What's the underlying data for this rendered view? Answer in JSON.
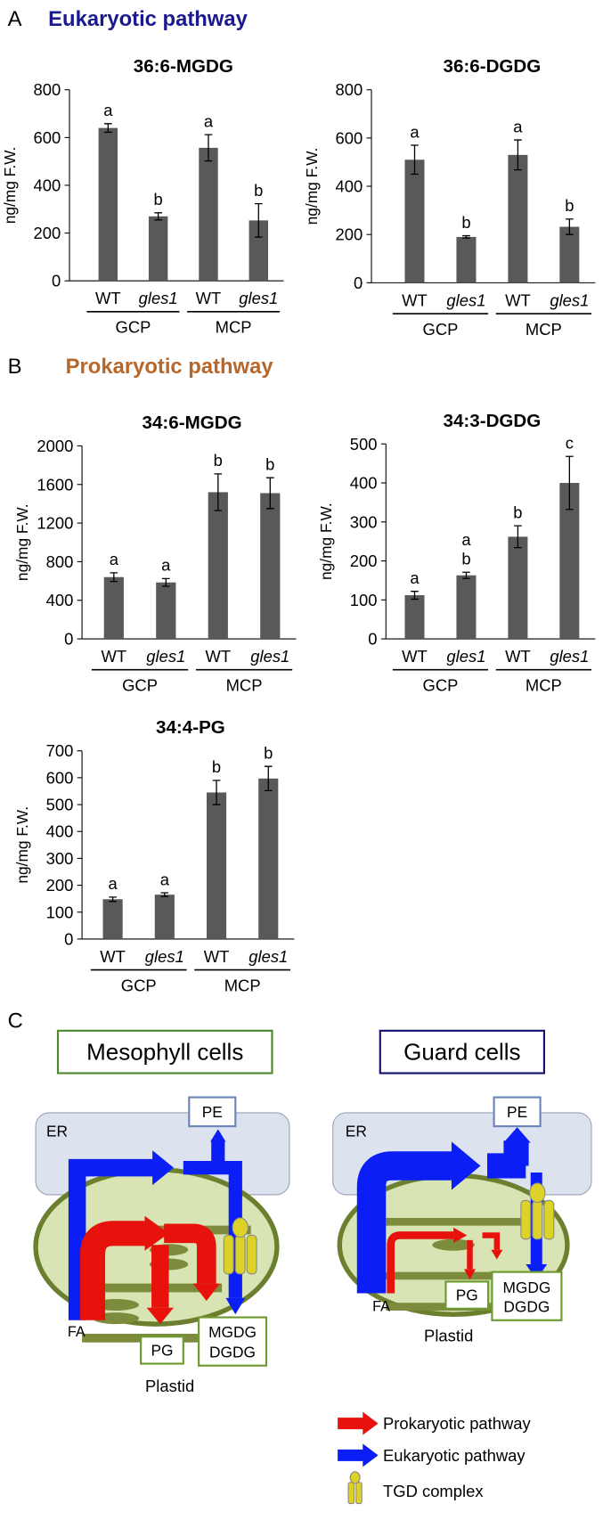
{
  "panels": [
    {
      "label": "A",
      "title": "Eukaryotic pathway"
    },
    {
      "label": "B",
      "title": "Prokaryotic pathway"
    },
    {
      "label": "C"
    }
  ],
  "chart_data": [
    {
      "type": "bar",
      "title": "36:6-MGDG",
      "y_label": "ng/mg F.W.",
      "categories": [
        "WT",
        "gles1",
        "WT",
        "gles1"
      ],
      "groups": [
        "GCP",
        "MCP"
      ],
      "values": [
        640,
        270,
        557,
        253
      ],
      "errors": [
        18,
        15,
        55,
        70
      ],
      "letters": [
        [
          "a"
        ],
        [
          "b"
        ],
        [
          "a"
        ],
        [
          "b"
        ]
      ],
      "color": "#595959",
      "ylim": [
        0,
        800
      ],
      "yticks": [
        0,
        200,
        400,
        600,
        800
      ]
    },
    {
      "type": "bar",
      "title": "36:6-DGDG",
      "y_label": "ng/mg F.W.",
      "categories": [
        "WT",
        "gles1",
        "WT",
        "gles1"
      ],
      "groups": [
        "GCP",
        "MCP"
      ],
      "values": [
        510,
        190,
        530,
        232
      ],
      "errors": [
        60,
        5,
        62,
        32
      ],
      "letters": [
        [
          "a"
        ],
        [
          "b"
        ],
        [
          "a"
        ],
        [
          "b"
        ]
      ],
      "color": "#595959",
      "ylim": [
        0,
        800
      ],
      "yticks": [
        0,
        200,
        400,
        600,
        800
      ]
    },
    {
      "type": "bar",
      "title": "34:6-MGDG",
      "y_label": "ng/mg F.W.",
      "categories": [
        "WT",
        "gles1",
        "WT",
        "gles1"
      ],
      "groups": [
        "GCP",
        "MCP"
      ],
      "values": [
        640,
        585,
        1520,
        1510
      ],
      "errors": [
        45,
        40,
        190,
        160
      ],
      "letters": [
        [
          "a"
        ],
        [
          "a"
        ],
        [
          "b"
        ],
        [
          "b"
        ]
      ],
      "color": "#595959",
      "ylim": [
        0,
        2000
      ],
      "yticks": [
        0,
        400,
        800,
        1200,
        1600,
        2000
      ]
    },
    {
      "type": "bar",
      "title": "34:3-DGDG",
      "y_label": "ng/mg F.W.",
      "categories": [
        "WT",
        "gles1",
        "WT",
        "gles1"
      ],
      "groups": [
        "GCP",
        "MCP"
      ],
      "values": [
        112,
        163,
        262,
        400
      ],
      "errors": [
        10,
        8,
        28,
        68
      ],
      "letters": [
        [
          "a"
        ],
        [
          "a",
          "b"
        ],
        [
          "b"
        ],
        [
          "c"
        ]
      ],
      "color": "#595959",
      "ylim": [
        0,
        500
      ],
      "yticks": [
        0,
        100,
        200,
        300,
        400,
        500
      ]
    },
    {
      "type": "bar",
      "title": "34:4-PG",
      "y_label": "ng/mg F.W.",
      "categories": [
        "WT",
        "gles1",
        "WT",
        "gles1"
      ],
      "groups": [
        "GCP",
        "MCP"
      ],
      "values": [
        148,
        165,
        545,
        597
      ],
      "errors": [
        8,
        7,
        45,
        45
      ],
      "letters": [
        [
          "a"
        ],
        [
          "a"
        ],
        [
          "b"
        ],
        [
          "b"
        ]
      ],
      "color": "#595959",
      "ylim": [
        0,
        700
      ],
      "yticks": [
        0,
        100,
        200,
        300,
        400,
        500,
        600,
        700
      ]
    }
  ],
  "diagram": {
    "left": {
      "title": "Mesophyll cells",
      "er": "ER",
      "pe": "PE",
      "fa": "FA",
      "pg": "PG",
      "mgdg": "MGDG",
      "dgdg": "DGDG",
      "plastid": "Plastid"
    },
    "right": {
      "title": "Guard cells",
      "er": "ER",
      "pe": "PE",
      "fa": "FA",
      "pg": "PG",
      "mgdg": "MGDG",
      "dgdg": "DGDG",
      "plastid": "Plastid"
    },
    "legend": [
      "Prokaryotic pathway",
      "Eukaryotic pathway",
      "TGD complex"
    ]
  }
}
